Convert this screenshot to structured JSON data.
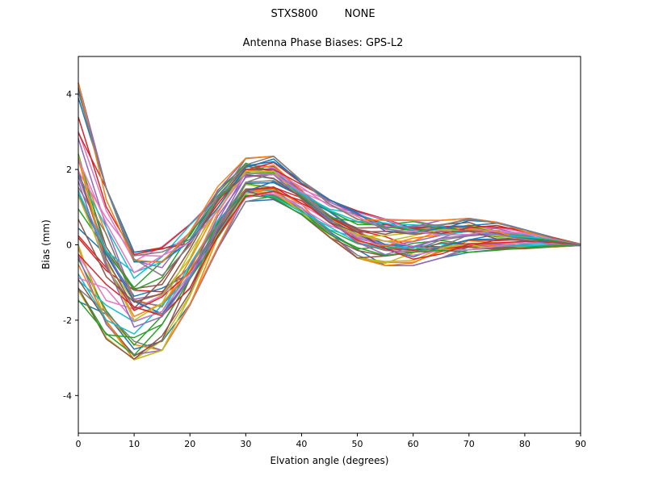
{
  "chart_data": {
    "type": "line",
    "suptitle": "STXS800        NONE",
    "title": "Antenna Phase Biases: GPS-L2",
    "xlabel": "Elvation angle (degrees)",
    "ylabel": "Bias (mm)",
    "xlim": [
      0,
      90
    ],
    "ylim": [
      -5,
      5
    ],
    "xticks": [
      0,
      10,
      20,
      30,
      40,
      50,
      60,
      70,
      80,
      90
    ],
    "yticks": [
      -4,
      -2,
      0,
      2,
      4
    ],
    "grid": false,
    "legend": false,
    "x": [
      0,
      5,
      10,
      15,
      20,
      25,
      30,
      35,
      40,
      45,
      50,
      55,
      60,
      65,
      70,
      75,
      80,
      85,
      90
    ],
    "envelope_mean": [
      1.0,
      -0.5,
      -1.6,
      -1.4,
      -0.5,
      0.75,
      1.75,
      1.75,
      1.25,
      0.7,
      0.3,
      0.1,
      0.08,
      0.17,
      0.25,
      0.22,
      0.15,
      0.07,
      0.0
    ],
    "envelope_upper": [
      4.3,
      1.5,
      -0.2,
      -0.05,
      0.55,
      1.55,
      2.3,
      2.35,
      1.7,
      1.2,
      0.9,
      0.7,
      0.65,
      0.65,
      0.7,
      0.6,
      0.4,
      0.2,
      0.02
    ],
    "envelope_lower": [
      -1.5,
      -2.5,
      -3.05,
      -2.8,
      -1.6,
      -0.1,
      1.15,
      1.2,
      0.8,
      0.2,
      -0.35,
      -0.55,
      -0.55,
      -0.35,
      -0.2,
      -0.15,
      -0.1,
      -0.06,
      -0.02
    ],
    "series_count": 48,
    "palette": [
      "#1f77b4",
      "#ff7f0e",
      "#2ca02c",
      "#d62728",
      "#9467bd",
      "#8c564b",
      "#e377c2",
      "#7f7f7f",
      "#bcbd22",
      "#17becf"
    ]
  }
}
